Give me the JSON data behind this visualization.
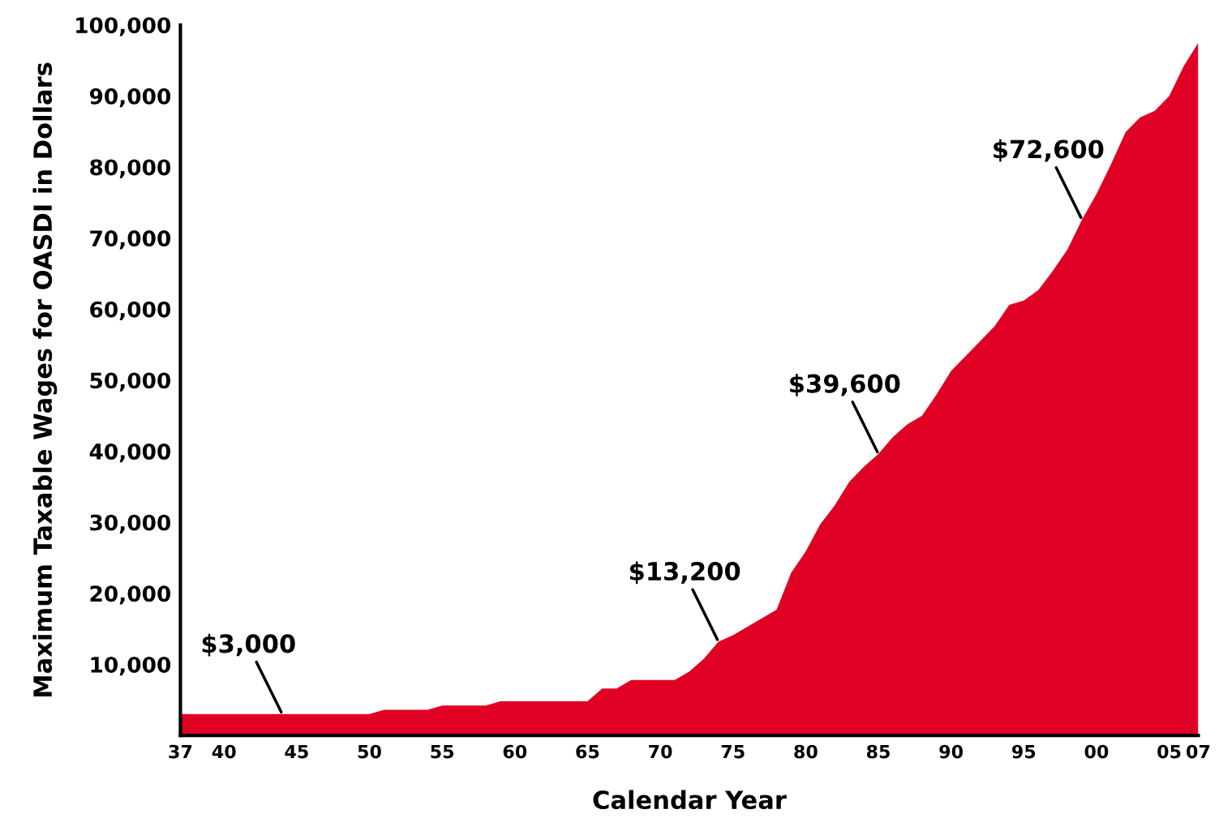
{
  "chart_data": {
    "type": "area",
    "xlabel": "Calendar Year",
    "ylabel": "Maximum Taxable Wages for OASDI in Dollars",
    "x": [
      1937,
      1938,
      1939,
      1940,
      1941,
      1942,
      1943,
      1944,
      1945,
      1946,
      1947,
      1948,
      1949,
      1950,
      1951,
      1952,
      1953,
      1954,
      1955,
      1956,
      1957,
      1958,
      1959,
      1960,
      1961,
      1962,
      1963,
      1964,
      1965,
      1966,
      1967,
      1968,
      1969,
      1970,
      1971,
      1972,
      1973,
      1974,
      1975,
      1976,
      1977,
      1978,
      1979,
      1980,
      1981,
      1982,
      1983,
      1984,
      1985,
      1986,
      1987,
      1988,
      1989,
      1990,
      1991,
      1992,
      1993,
      1994,
      1995,
      1996,
      1997,
      1998,
      1999,
      2000,
      2001,
      2002,
      2003,
      2004,
      2005,
      2006,
      2007
    ],
    "series": [
      {
        "color": "#e00024",
        "values": [
          3000,
          3000,
          3000,
          3000,
          3000,
          3000,
          3000,
          3000,
          3000,
          3000,
          3000,
          3000,
          3000,
          3000,
          3600,
          3600,
          3600,
          3600,
          4200,
          4200,
          4200,
          4200,
          4800,
          4800,
          4800,
          4800,
          4800,
          4800,
          4800,
          6600,
          6600,
          7800,
          7800,
          7800,
          7800,
          9000,
          10800,
          13200,
          14100,
          15300,
          16500,
          17700,
          22900,
          25900,
          29700,
          32400,
          35700,
          37800,
          39600,
          42000,
          43800,
          45000,
          48000,
          51300,
          53400,
          55500,
          57600,
          60600,
          61200,
          62700,
          65400,
          68400,
          72600,
          76200,
          80400,
          84900,
          87000,
          87900,
          90000,
          94200,
          97500
        ]
      }
    ],
    "xlim": [
      1937,
      2007
    ],
    "xticks": [
      {
        "value": 1937,
        "label": "37"
      },
      {
        "value": 1940,
        "label": "40"
      },
      {
        "value": 1945,
        "label": "45"
      },
      {
        "value": 1950,
        "label": "50"
      },
      {
        "value": 1955,
        "label": "55"
      },
      {
        "value": 1960,
        "label": "60"
      },
      {
        "value": 1965,
        "label": "65"
      },
      {
        "value": 1970,
        "label": "70"
      },
      {
        "value": 1975,
        "label": "75"
      },
      {
        "value": 1980,
        "label": "80"
      },
      {
        "value": 1985,
        "label": "85"
      },
      {
        "value": 1990,
        "label": "90"
      },
      {
        "value": 1995,
        "label": "95"
      },
      {
        "value": 2000,
        "label": "00"
      },
      {
        "value": 2005,
        "label": "05"
      },
      {
        "value": 2007,
        "label": "07"
      }
    ],
    "ylim": [
      0,
      100000
    ],
    "yticks": [
      {
        "value": 10000,
        "label": "10,000"
      },
      {
        "value": 20000,
        "label": "20,000"
      },
      {
        "value": 30000,
        "label": "30,000"
      },
      {
        "value": 40000,
        "label": "40,000"
      },
      {
        "value": 50000,
        "label": "50,000"
      },
      {
        "value": 60000,
        "label": "60,000"
      },
      {
        "value": 70000,
        "label": "70,000"
      },
      {
        "value": 80000,
        "label": "80,000"
      },
      {
        "value": 90000,
        "label": "90,000"
      },
      {
        "value": 100000,
        "label": "100,000"
      }
    ],
    "annotations": [
      {
        "text": "$3,000",
        "x": 1944,
        "y": 3000
      },
      {
        "text": "$13,200",
        "x": 1974,
        "y": 13200
      },
      {
        "text": "$39,600",
        "x": 1985,
        "y": 39600
      },
      {
        "text": "$72,600",
        "x": 1999,
        "y": 72600
      }
    ],
    "grid": false
  }
}
